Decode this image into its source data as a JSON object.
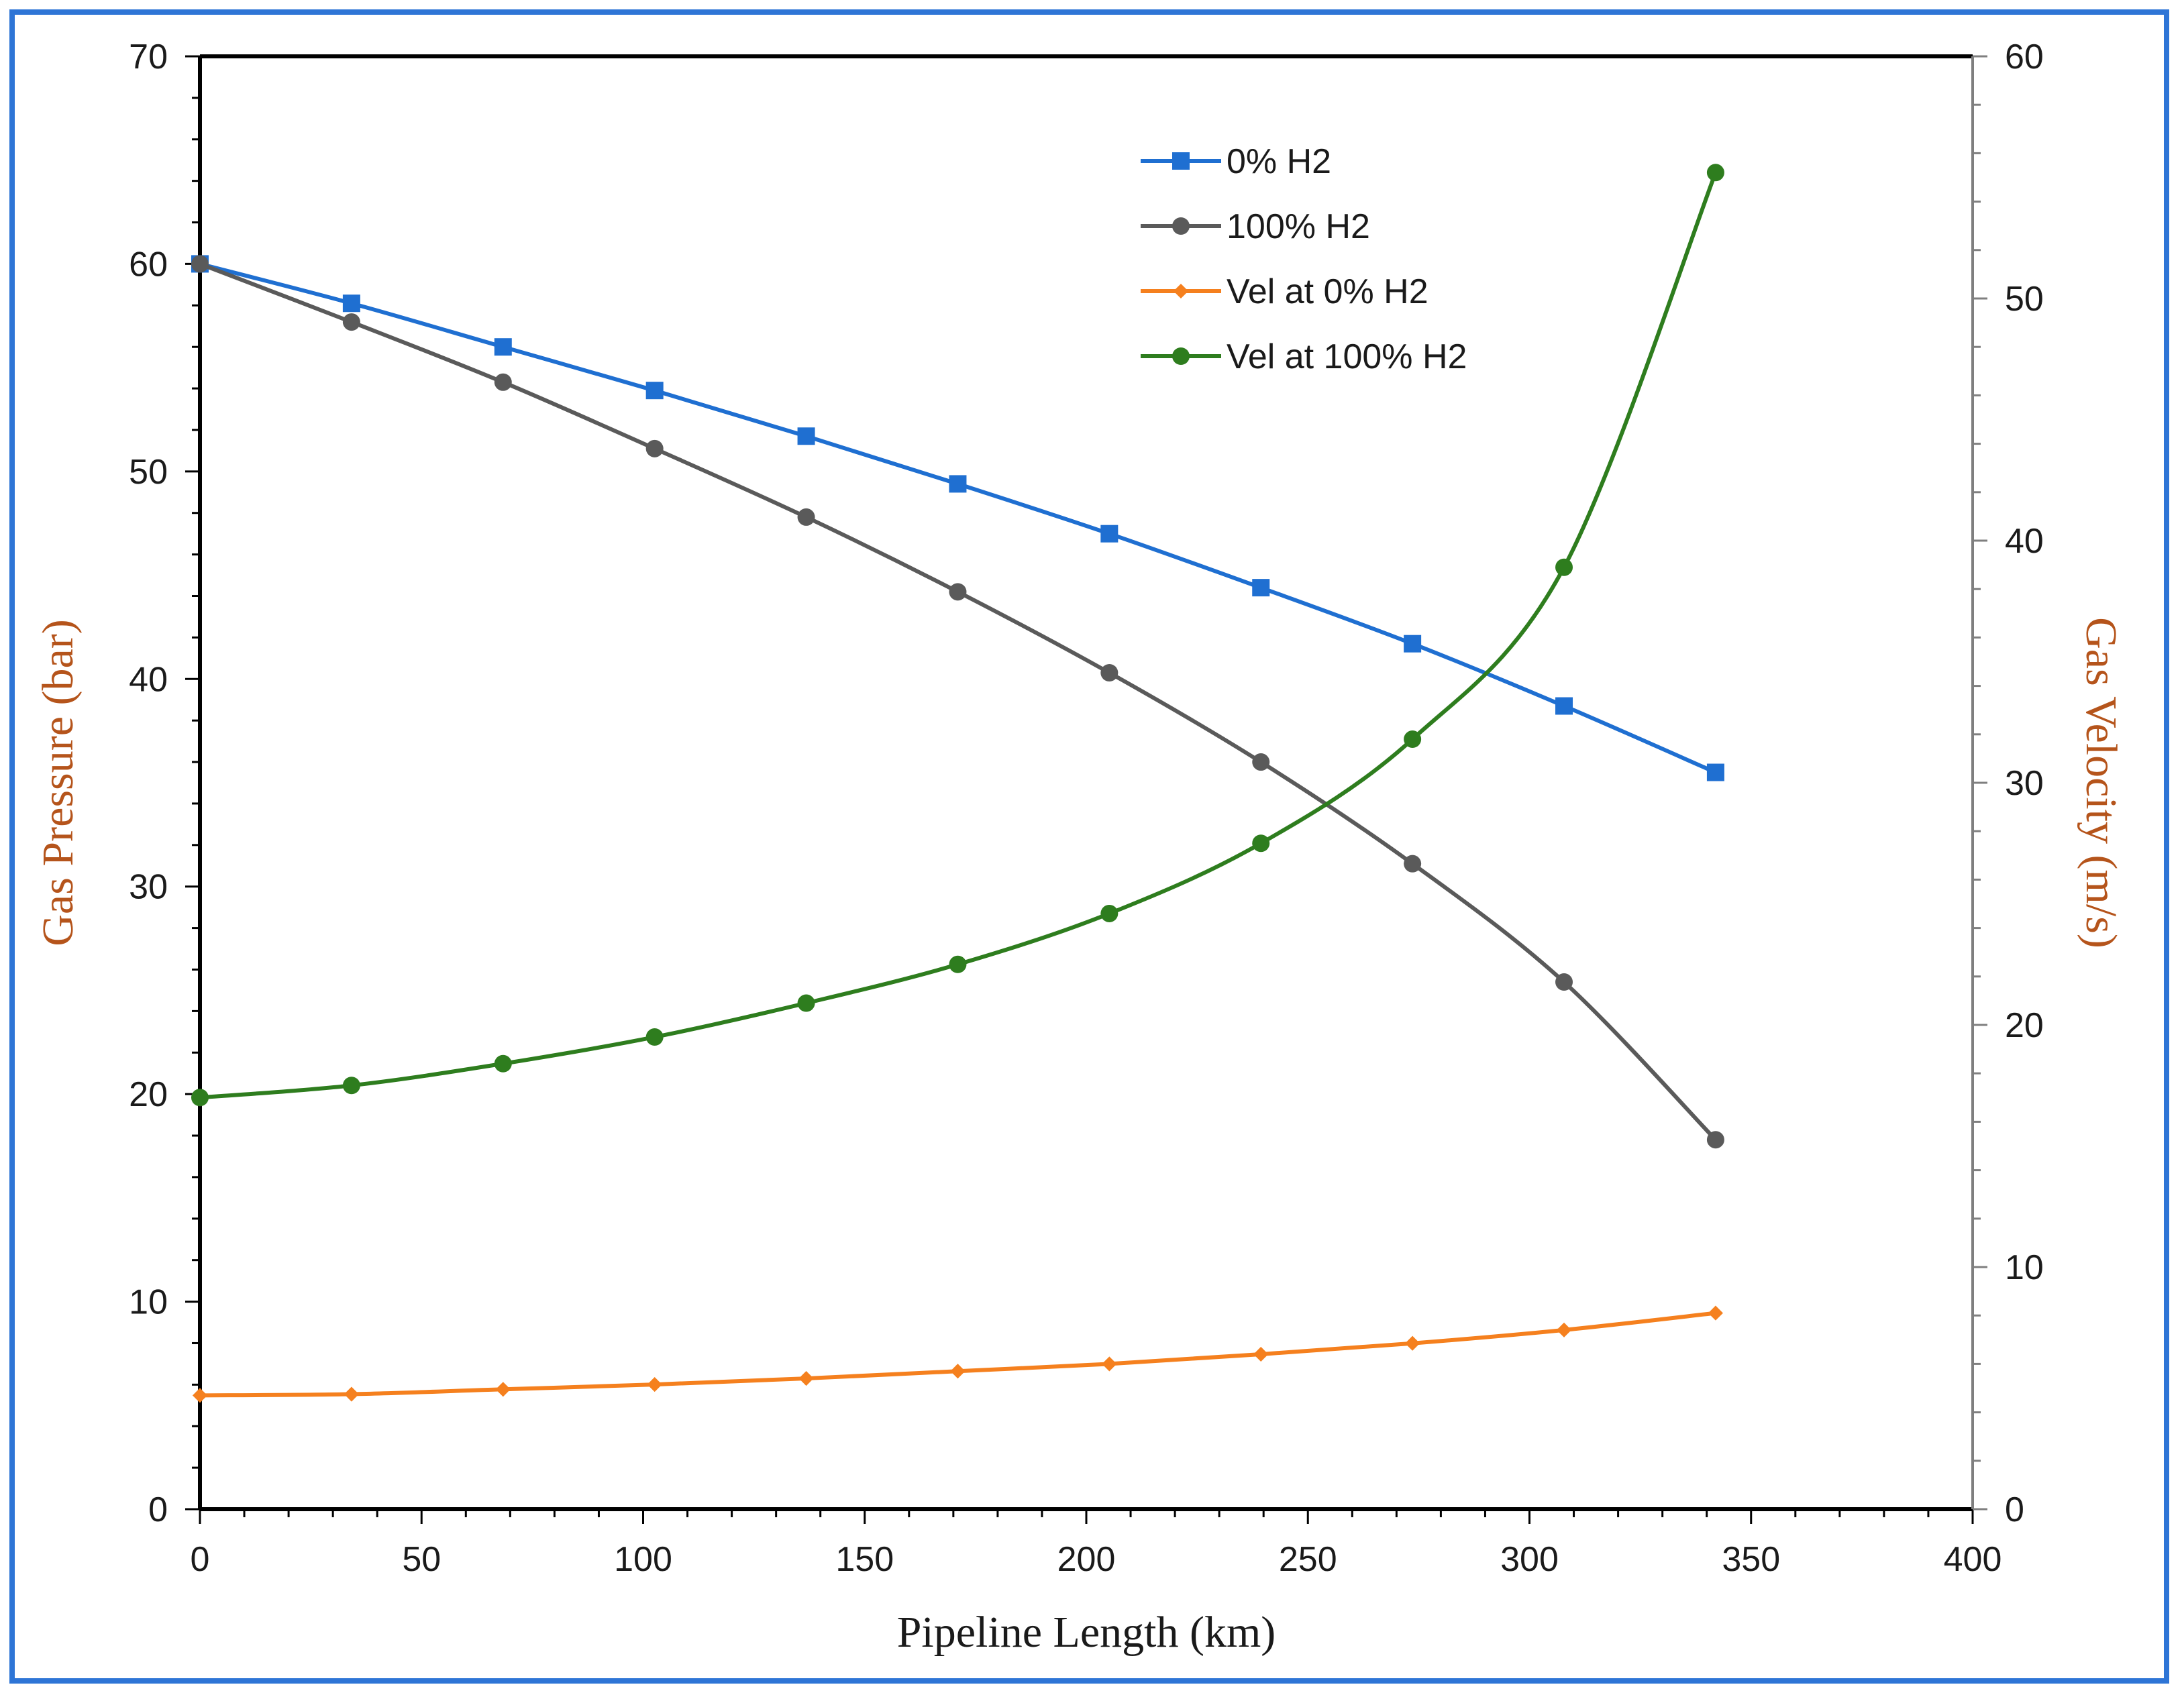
{
  "chart_data": {
    "type": "line",
    "title": "",
    "xlabel": "Pipeline Length (km)",
    "ylabel": "Gas Pressure (bar)",
    "y2label": "Gas Velocity (m/s)",
    "xlim": [
      0,
      400
    ],
    "ylim": [
      0,
      70
    ],
    "y2lim": [
      0,
      60
    ],
    "x_ticks": [
      0,
      50,
      100,
      150,
      200,
      250,
      300,
      350,
      400
    ],
    "y_ticks": [
      0,
      10,
      20,
      30,
      40,
      50,
      60,
      70
    ],
    "y2_ticks": [
      0,
      10,
      20,
      30,
      40,
      50,
      60
    ],
    "grid": false,
    "legend_position": "top-center",
    "x": [
      0,
      34.2,
      68.4,
      102.6,
      136.8,
      171,
      205.2,
      239.4,
      273.6,
      307.8,
      342
    ],
    "series": [
      {
        "name": "0% H2",
        "axis": "left",
        "color": "#1f6fd1",
        "marker": "square",
        "values": [
          60,
          58.1,
          56.0,
          53.9,
          51.7,
          49.4,
          47.0,
          44.4,
          41.7,
          38.7,
          35.5
        ]
      },
      {
        "name": "100% H2",
        "axis": "left",
        "color": "#5a5a5a",
        "marker": "circle",
        "values": [
          60,
          57.2,
          54.3,
          51.1,
          47.8,
          44.2,
          40.3,
          36.0,
          31.1,
          25.4,
          17.8
        ]
      },
      {
        "name": "Vel at 0% H2",
        "axis": "right",
        "color": "#f5801e",
        "marker": "diamond",
        "values": [
          4.7,
          4.75,
          4.95,
          5.15,
          5.4,
          5.7,
          6.0,
          6.4,
          6.85,
          7.4,
          8.1
        ]
      },
      {
        "name": "Vel at 100% H2",
        "axis": "right",
        "color": "#2e7d1e",
        "marker": "circle",
        "values": [
          17.0,
          17.5,
          18.4,
          19.5,
          20.9,
          22.5,
          24.6,
          27.5,
          31.8,
          38.9,
          55.2
        ]
      }
    ]
  }
}
